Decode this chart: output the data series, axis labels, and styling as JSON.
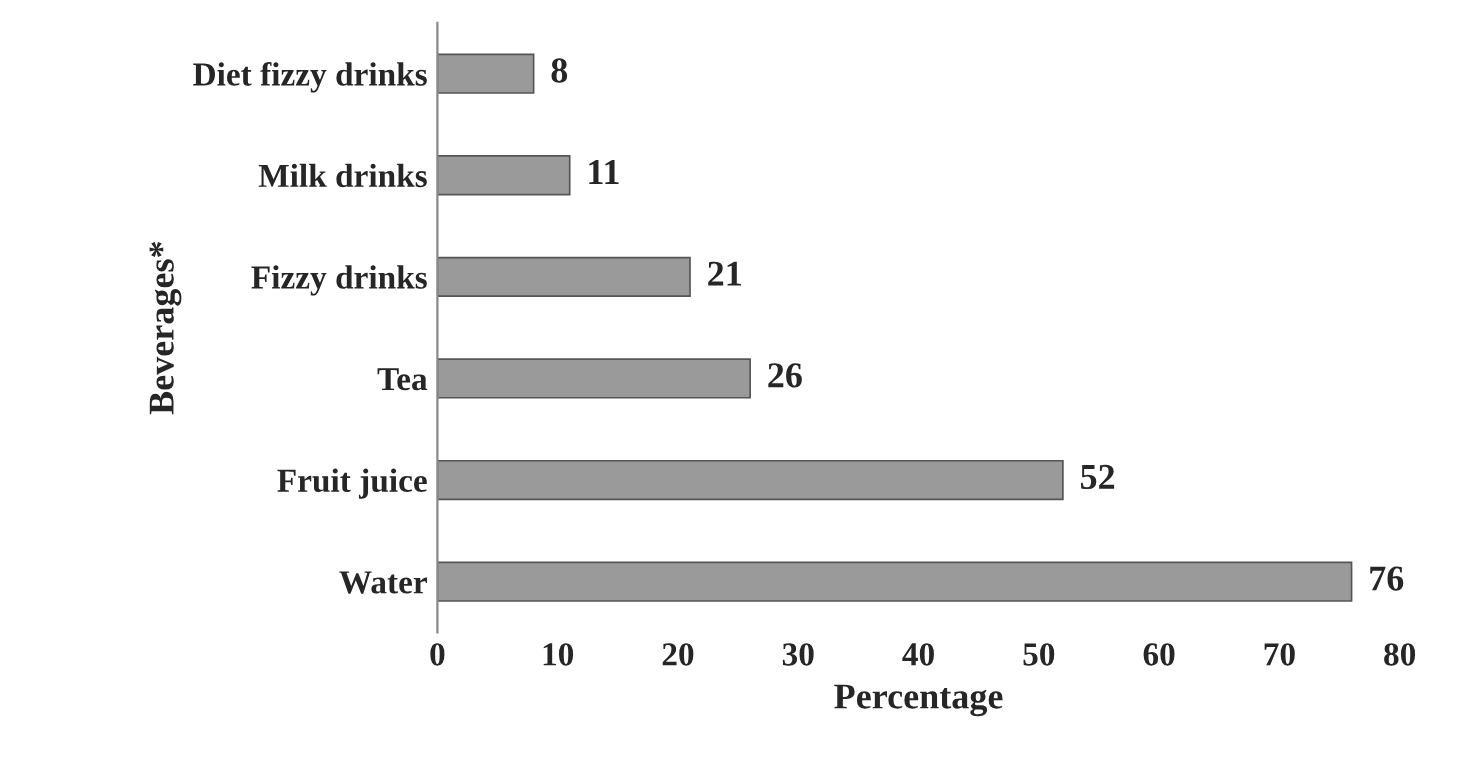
{
  "chart_data": {
    "type": "bar",
    "orientation": "horizontal",
    "xlabel": "Percentage",
    "ylabel": "Beverages*",
    "categories": [
      "Diet fizzy drinks",
      "Milk drinks",
      "Fizzy drinks",
      "Tea",
      "Fruit juice",
      "Water"
    ],
    "values": [
      8,
      11,
      21,
      26,
      52,
      76
    ],
    "color": "#9a9a9a",
    "xlim": [
      0,
      80
    ],
    "xticks": [
      0,
      10,
      20,
      30,
      40,
      50,
      60,
      70,
      80
    ],
    "grid": false,
    "data_labels": true
  }
}
